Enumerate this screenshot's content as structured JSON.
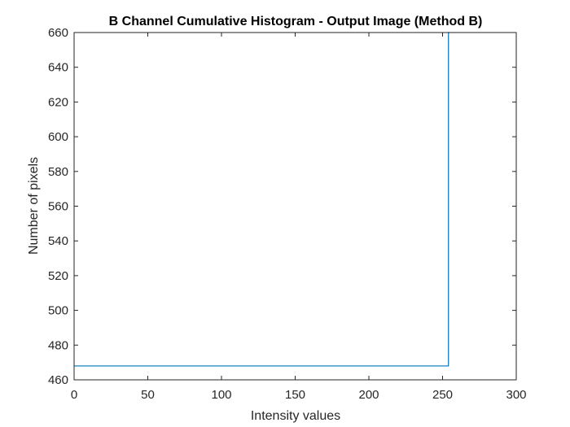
{
  "chart_data": {
    "type": "line",
    "title": "B Channel Cumulative Histogram - Output Image (Method B)",
    "xlabel": "Intensity values",
    "ylabel": "Number of pixels",
    "xlim": [
      0,
      300
    ],
    "ylim": [
      460,
      660
    ],
    "xticks": [
      0,
      50,
      100,
      150,
      200,
      250,
      300
    ],
    "yticks": [
      460,
      480,
      500,
      520,
      540,
      560,
      580,
      600,
      620,
      640,
      660
    ],
    "grid": false,
    "legend": "none",
    "series": [
      {
        "color": "#0072BD",
        "x": [
          0,
          254,
          254,
          255
        ],
        "y": [
          468,
          468,
          660,
          660
        ]
      }
    ]
  }
}
